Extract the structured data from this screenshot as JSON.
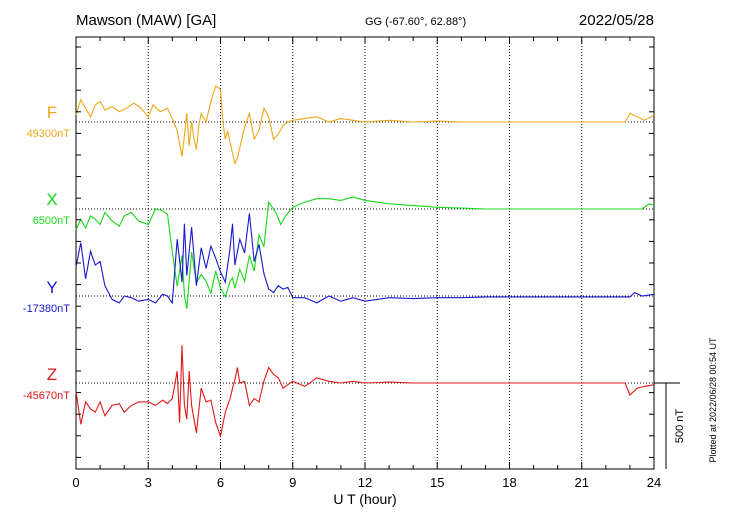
{
  "header": {
    "station": "Mawson (MAW)  [GA]",
    "coords": "GG (-67.60°,  62.88°)",
    "date": "2022/05/28"
  },
  "side_note": "Plotted at 2022/06/28 00:54 UT",
  "scale_label": "500 nT",
  "chart_data": {
    "type": "line",
    "xlabel": "U T (hour)",
    "xlim": [
      0,
      24
    ],
    "x_ticks": [
      0,
      3,
      6,
      9,
      12,
      15,
      18,
      21,
      24
    ],
    "grid": "dotted vertical at 3h, dotted baseline per component",
    "scale_nT": 500,
    "series": [
      {
        "name": "F",
        "baseline_label": "49300nT",
        "baseline_nT": 49300,
        "color": "#f0a818",
        "x": [
          0,
          0.2,
          0.4,
          0.6,
          0.8,
          1.0,
          1.2,
          1.5,
          1.8,
          2.1,
          2.4,
          2.7,
          3.0,
          3.2,
          3.5,
          3.8,
          4.0,
          4.2,
          4.4,
          4.5,
          4.6,
          4.7,
          4.8,
          4.9,
          5.0,
          5.1,
          5.2,
          5.4,
          5.6,
          5.8,
          6.0,
          6.1,
          6.2,
          6.3,
          6.4,
          6.5,
          6.6,
          6.7,
          6.8,
          7.0,
          7.2,
          7.4,
          7.6,
          7.8,
          8.0,
          8.2,
          8.4,
          8.6,
          8.8,
          9.0,
          9.5,
          10.0,
          10.5,
          11.0,
          11.5,
          12.0,
          13.0,
          14.0,
          15.0,
          16.0,
          17.0,
          18.0,
          19.0,
          20.0,
          21.0,
          22.0,
          22.8,
          23.0,
          23.3,
          23.6,
          24.0
        ],
        "y": [
          49340,
          49430,
          49380,
          49330,
          49400,
          49420,
          49370,
          49390,
          49360,
          49380,
          49410,
          49380,
          49330,
          49400,
          49360,
          49380,
          49320,
          49250,
          49100,
          49220,
          49350,
          49160,
          49300,
          49200,
          49140,
          49280,
          49350,
          49300,
          49420,
          49510,
          49490,
          49300,
          49200,
          49250,
          49180,
          49120,
          49060,
          49090,
          49150,
          49270,
          49350,
          49200,
          49250,
          49380,
          49330,
          49200,
          49230,
          49280,
          49300,
          49310,
          49320,
          49330,
          49300,
          49320,
          49310,
          49300,
          49310,
          49300,
          49305,
          49300,
          49300,
          49300,
          49300,
          49300,
          49300,
          49300,
          49300,
          49350,
          49330,
          49310,
          49340
        ]
      },
      {
        "name": "X",
        "baseline_label": "6500nT",
        "baseline_nT": 6500,
        "color": "#18d818",
        "x": [
          0,
          0.2,
          0.4,
          0.6,
          0.8,
          1.0,
          1.2,
          1.5,
          1.8,
          2.0,
          2.3,
          2.6,
          3.0,
          3.3,
          3.6,
          3.8,
          4.0,
          4.2,
          4.4,
          4.5,
          4.6,
          4.8,
          5.0,
          5.2,
          5.4,
          5.6,
          5.8,
          6.0,
          6.2,
          6.4,
          6.5,
          6.6,
          6.8,
          7.0,
          7.2,
          7.4,
          7.6,
          7.8,
          8.0,
          8.1,
          8.3,
          8.5,
          8.7,
          9.0,
          9.5,
          10.0,
          10.5,
          11.0,
          11.5,
          12.0,
          13.0,
          14.0,
          15.0,
          16.0,
          17.0,
          18.0,
          19.0,
          20.0,
          21.0,
          22.0,
          23.0,
          23.5,
          23.8,
          24.0
        ],
        "y": [
          6380,
          6440,
          6390,
          6460,
          6440,
          6410,
          6480,
          6430,
          6400,
          6460,
          6480,
          6430,
          6410,
          6500,
          6490,
          6470,
          6250,
          6050,
          6230,
          6000,
          5920,
          6250,
          6070,
          6120,
          6080,
          6010,
          6140,
          6040,
          5990,
          6080,
          6100,
          6040,
          6150,
          6080,
          6230,
          6140,
          6350,
          6280,
          6540,
          6520,
          6480,
          6410,
          6460,
          6510,
          6540,
          6560,
          6560,
          6550,
          6570,
          6550,
          6530,
          6520,
          6510,
          6505,
          6500,
          6500,
          6500,
          6500,
          6500,
          6500,
          6500,
          6500,
          6530,
          6520
        ]
      },
      {
        "name": "Y",
        "baseline_label": "-17380nT",
        "baseline_nT": -17380,
        "color": "#1818d0",
        "x": [
          0,
          0.2,
          0.4,
          0.6,
          0.8,
          1.0,
          1.2,
          1.5,
          1.8,
          2.0,
          2.3,
          2.6,
          3.0,
          3.3,
          3.6,
          3.8,
          4.0,
          4.2,
          4.4,
          4.5,
          4.6,
          4.8,
          5.0,
          5.2,
          5.4,
          5.6,
          5.8,
          6.0,
          6.2,
          6.4,
          6.5,
          6.6,
          6.8,
          7.0,
          7.2,
          7.4,
          7.6,
          7.8,
          8.0,
          8.2,
          8.4,
          8.6,
          8.8,
          9.0,
          9.5,
          10.0,
          10.5,
          11.0,
          11.5,
          12.0,
          12.5,
          13.0,
          14.0,
          15.0,
          16.0,
          17.0,
          18.0,
          19.0,
          20.0,
          21.0,
          22.0,
          23.0,
          23.2,
          23.5,
          24.0
        ],
        "y": [
          -17210,
          -17070,
          -17280,
          -17120,
          -17200,
          -17180,
          -17320,
          -17400,
          -17420,
          -17380,
          -17390,
          -17410,
          -17400,
          -17420,
          -17370,
          -17380,
          -17420,
          -17050,
          -17300,
          -16960,
          -17260,
          -16980,
          -17320,
          -17100,
          -17220,
          -17090,
          -17160,
          -17240,
          -17300,
          -17100,
          -16960,
          -17200,
          -17050,
          -17130,
          -16900,
          -17180,
          -17080,
          -17250,
          -17340,
          -17360,
          -17320,
          -17340,
          -17330,
          -17390,
          -17390,
          -17420,
          -17380,
          -17410,
          -17390,
          -17410,
          -17400,
          -17390,
          -17395,
          -17390,
          -17390,
          -17385,
          -17385,
          -17385,
          -17385,
          -17385,
          -17385,
          -17385,
          -17360,
          -17380,
          -17370
        ]
      },
      {
        "name": "Z",
        "baseline_label": "-45670nT",
        "baseline_nT": -45670,
        "color": "#e01818",
        "x": [
          0,
          0.2,
          0.4,
          0.6,
          0.8,
          1.0,
          1.2,
          1.5,
          1.8,
          2.0,
          2.3,
          2.6,
          3.0,
          3.3,
          3.6,
          3.8,
          4.0,
          4.2,
          4.3,
          4.4,
          4.5,
          4.6,
          4.7,
          4.8,
          5.0,
          5.2,
          5.4,
          5.6,
          5.8,
          6.0,
          6.2,
          6.4,
          6.5,
          6.6,
          6.7,
          6.8,
          7.0,
          7.2,
          7.4,
          7.6,
          7.8,
          8.0,
          8.2,
          8.4,
          8.6,
          8.8,
          9.0,
          9.5,
          10.0,
          10.5,
          11.0,
          11.5,
          12.0,
          13.0,
          14.0,
          15.0,
          16.0,
          17.0,
          18.0,
          19.0,
          20.0,
          21.0,
          22.0,
          22.8,
          23.0,
          23.3,
          23.6,
          24.0
        ],
        "y": [
          -45720,
          -45910,
          -45780,
          -45820,
          -45840,
          -45780,
          -45860,
          -45800,
          -45790,
          -45840,
          -45800,
          -45780,
          -45780,
          -45800,
          -45770,
          -45790,
          -45760,
          -45600,
          -45900,
          -45450,
          -45800,
          -45880,
          -45600,
          -45800,
          -45960,
          -45700,
          -45780,
          -45770,
          -45900,
          -45980,
          -45840,
          -45760,
          -45700,
          -45650,
          -45580,
          -45670,
          -45660,
          -45800,
          -45760,
          -45780,
          -45660,
          -45580,
          -45620,
          -45640,
          -45700,
          -45680,
          -45660,
          -45690,
          -45640,
          -45660,
          -45670,
          -45660,
          -45670,
          -45665,
          -45670,
          -45670,
          -45670,
          -45670,
          -45670,
          -45670,
          -45670,
          -45670,
          -45670,
          -45670,
          -45740,
          -45700,
          -45690,
          -45680
        ]
      }
    ]
  }
}
